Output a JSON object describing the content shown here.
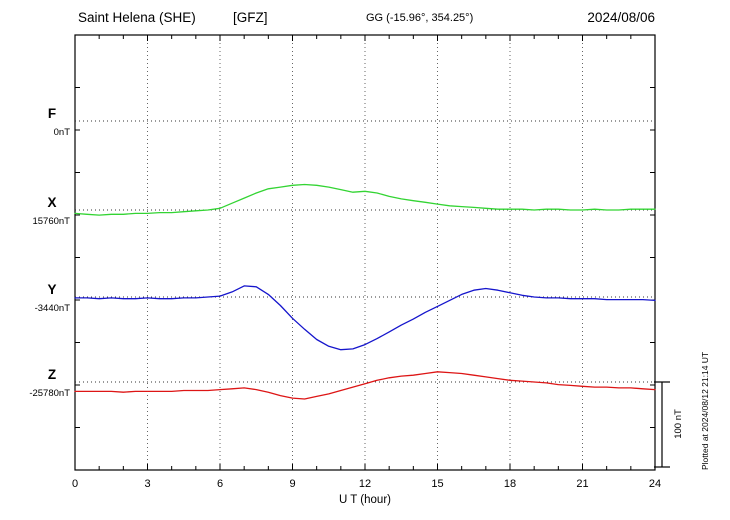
{
  "header": {
    "station": "Saint Helena (SHE)",
    "institute": "[GFZ]",
    "coords": "GG (-15.96°, 354.25°)",
    "date": "2024/08/06"
  },
  "axis": {
    "xlabel": "U T (hour)",
    "x_ticks": [
      0,
      3,
      6,
      9,
      12,
      15,
      18,
      21,
      24
    ],
    "x_range": [
      0,
      24
    ]
  },
  "scale_bar": {
    "label": "100 nT",
    "nT": 100
  },
  "footer": {
    "plotted_note": "Plotted at 2024/08/12 21:14 UT"
  },
  "chart_data": {
    "type": "line",
    "title": "Saint Helena (SHE) magnetogram 2024/08/06",
    "xlabel": "U T (hour)",
    "x_unit": "hour",
    "x_range": [
      0,
      24
    ],
    "x_step": 0.5,
    "values_are": "deviation in nT from each component baseline; 100 nT scale bar shown",
    "series": [
      {
        "name": "F",
        "color": "#f5a400",
        "baseline_label": "0nT",
        "baseline_nT": 0,
        "values": []
      },
      {
        "name": "X",
        "color": "#33d433",
        "baseline_label": "15760nT",
        "baseline_nT": 15760,
        "values": [
          -4,
          -5,
          -6,
          -5,
          -5,
          -4,
          -4,
          -3,
          -3,
          -2,
          -1,
          0,
          2,
          8,
          14,
          20,
          25,
          27,
          29,
          30,
          29,
          27,
          24,
          21,
          22,
          20,
          16,
          13,
          11,
          9,
          7,
          5,
          4,
          3,
          2,
          1,
          1,
          1,
          0,
          1,
          1,
          0,
          0,
          1,
          0,
          0,
          1,
          1,
          1
        ]
      },
      {
        "name": "Y",
        "color": "#1515cc",
        "baseline_label": "-3440nT",
        "baseline_nT": -3440,
        "values": [
          -1,
          -1,
          -2,
          -1,
          -2,
          -2,
          -1,
          -2,
          -2,
          -1,
          -1,
          0,
          1,
          6,
          13,
          12,
          3,
          -10,
          -25,
          -38,
          -50,
          -58,
          -62,
          -61,
          -56,
          -49,
          -41,
          -33,
          -26,
          -18,
          -11,
          -4,
          3,
          8,
          10,
          8,
          5,
          2,
          0,
          -1,
          -1,
          -2,
          -2,
          -2,
          -3,
          -3,
          -3,
          -3,
          -4
        ]
      },
      {
        "name": "Z",
        "color": "#dd1515",
        "baseline_label": "-25780nT",
        "baseline_nT": -25780,
        "values": [
          -11,
          -11,
          -11,
          -11,
          -12,
          -11,
          -11,
          -11,
          -11,
          -10,
          -10,
          -10,
          -9,
          -8,
          -7,
          -9,
          -12,
          -16,
          -19,
          -20,
          -17,
          -14,
          -10,
          -6,
          -2,
          2,
          5,
          7,
          8,
          10,
          12,
          11,
          10,
          8,
          6,
          4,
          2,
          1,
          0,
          -1,
          -3,
          -4,
          -5,
          -6,
          -6,
          -7,
          -7,
          -8,
          -9
        ]
      }
    ]
  }
}
